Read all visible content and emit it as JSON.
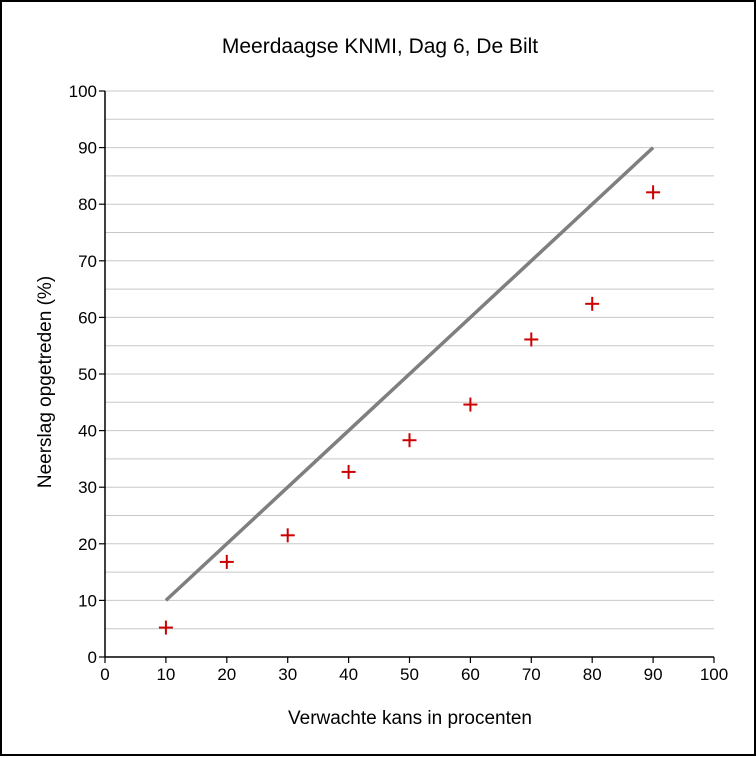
{
  "chart_data": {
    "type": "scatter",
    "title": "Meerdaagse KNMI, Dag 6, De Bilt",
    "xlabel": "Verwachte kans in procenten",
    "ylabel": "Neerslag opgetreden (%)",
    "xlim": [
      0,
      100
    ],
    "ylim": [
      0,
      100
    ],
    "xticks": [
      "0",
      "10",
      "20",
      "30",
      "40",
      "50",
      "60",
      "70",
      "80",
      "90",
      "100"
    ],
    "yticks": [
      "0",
      "10",
      "20",
      "30",
      "40",
      "50",
      "60",
      "70",
      "80",
      "90",
      "100"
    ],
    "grid": true,
    "reference_line": {
      "x": [
        10,
        90
      ],
      "y": [
        10,
        90
      ],
      "color": "#7f7f7f"
    },
    "series": [
      {
        "marker": "plus",
        "color": "#cc0000",
        "x": [
          10,
          20,
          30,
          40,
          50,
          60,
          70,
          80,
          90
        ],
        "y": [
          5.2,
          16.8,
          21.5,
          32.7,
          38.3,
          44.6,
          56.1,
          62.4,
          82.1
        ]
      }
    ]
  }
}
